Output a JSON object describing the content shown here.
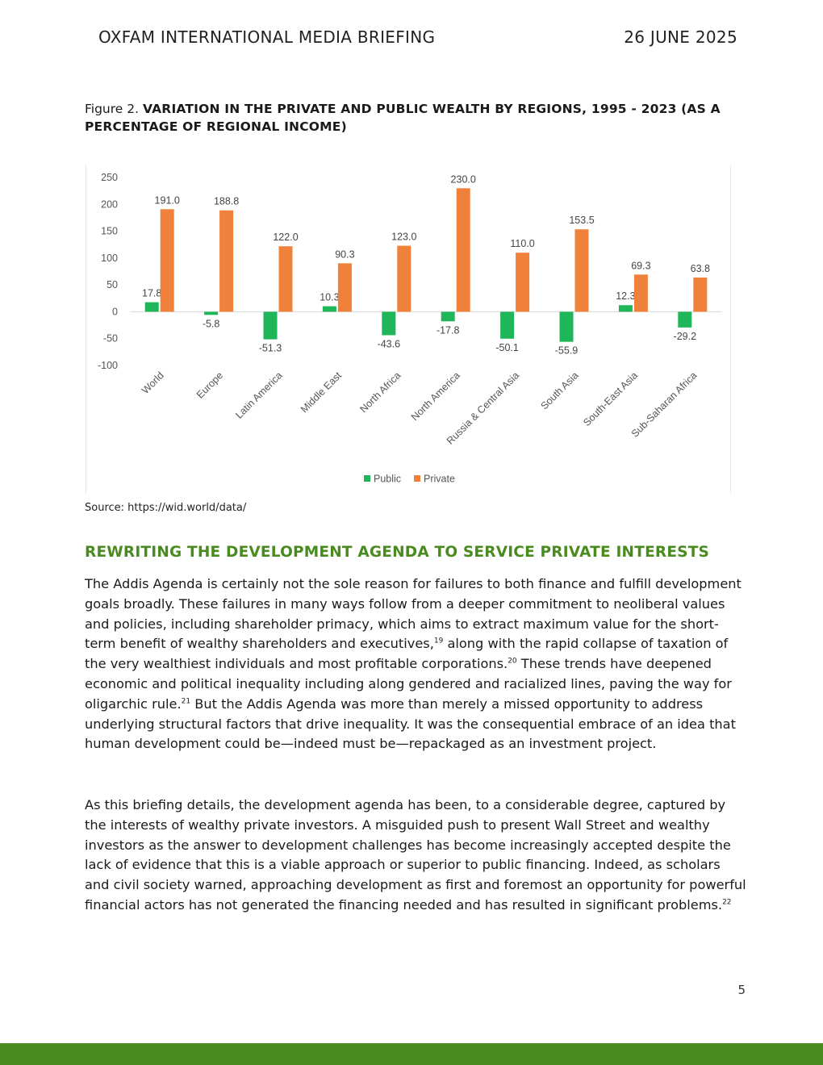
{
  "header": {
    "left": "OXFAM INTERNATIONAL MEDIA BRIEFING",
    "right": "26 JUNE 2025"
  },
  "figure": {
    "label": "Figure 2. ",
    "title": "VARIATION IN THE PRIVATE AND PUBLIC WEALTH BY REGIONS, 1995 - 2023 (AS A PERCENTAGE OF REGIONAL INCOME)",
    "source": "Source: https://wid.world/data/"
  },
  "chart_data": {
    "type": "bar",
    "title": "",
    "xlabel": "",
    "ylabel": "",
    "categories": [
      "World",
      "Europe",
      "Latin America",
      "Middle East",
      "North Africa",
      "North America",
      "Russia & Central Asia",
      "South Asia",
      "South-East Asia",
      "Sub-Saharan Africa"
    ],
    "series": [
      {
        "name": "Public",
        "color": "#1fb65a",
        "values": [
          17.8,
          -5.8,
          -51.3,
          10.3,
          -43.6,
          -17.8,
          -50.1,
          -55.9,
          12.3,
          -29.2
        ]
      },
      {
        "name": "Private",
        "color": "#f0813a",
        "values": [
          191.0,
          188.8,
          122.0,
          90.3,
          123.0,
          230.0,
          110.0,
          153.5,
          69.3,
          63.8
        ]
      }
    ],
    "ylim": [
      -100,
      250
    ],
    "yticks": [
      250,
      200,
      150,
      100,
      50,
      0,
      -50,
      -100
    ],
    "grid": false,
    "legend": "bottom-center"
  },
  "section": {
    "heading": "REWRITING THE DEVELOPMENT AGENDA TO SERVICE PRIVATE INTERESTS",
    "p1_a": "The Addis Agenda is certainly not the sole reason for failures to both finance and fulfill development goals broadly. These failures in many ways follow from a deeper commitment to neoliberal values and policies, including shareholder primacy, which aims to extract maximum value for the short-term benefit of wealthy shareholders and executives,",
    "fn19": "19",
    "p1_b": " along with the rapid collapse of taxation of the very wealthiest individuals and most profitable corporations.",
    "fn20": "20",
    "p1_c": " These trends have deepened economic and political inequality including along gendered and racialized lines, paving the way for oligarchic rule.",
    "fn21": "21",
    "p1_d": " But the Addis Agenda was more than merely a missed opportunity to address underlying structural factors that drive inequality. It was the consequential embrace of an idea that human development could be—indeed must be—repackaged as an investment project.",
    "p2_a": "As this briefing details, the development agenda has been, to a considerable degree, captured by the interests of wealthy private investors. A misguided push to present Wall Street and wealthy investors as the answer to development challenges has become increasingly accepted despite the lack of evidence that this is a viable approach or superior to public financing. Indeed, as scholars and civil society warned, approaching development as first and foremost an opportunity for powerful financial actors has not generated the financing needed and has resulted in significant problems.",
    "fn22": "22"
  },
  "page_number": "5"
}
